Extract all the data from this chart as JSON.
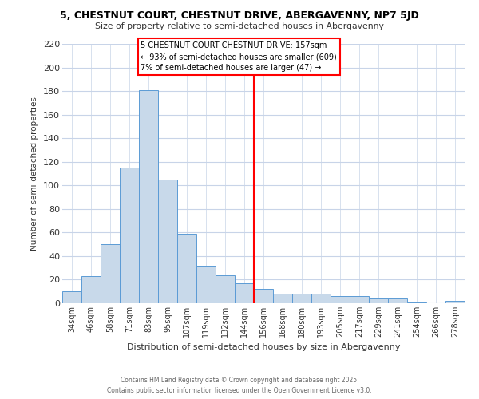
{
  "title": "5, CHESTNUT COURT, CHESTNUT DRIVE, ABERGAVENNY, NP7 5JD",
  "subtitle": "Size of property relative to semi-detached houses in Abergavenny",
  "xlabel": "Distribution of semi-detached houses by size in Abergavenny",
  "ylabel": "Number of semi-detached properties",
  "bar_labels": [
    "34sqm",
    "46sqm",
    "58sqm",
    "71sqm",
    "83sqm",
    "95sqm",
    "107sqm",
    "119sqm",
    "132sqm",
    "144sqm",
    "156sqm",
    "168sqm",
    "180sqm",
    "193sqm",
    "205sqm",
    "217sqm",
    "229sqm",
    "241sqm",
    "254sqm",
    "266sqm",
    "278sqm"
  ],
  "bar_values": [
    10,
    23,
    50,
    115,
    181,
    105,
    59,
    32,
    24,
    17,
    12,
    8,
    8,
    8,
    6,
    6,
    4,
    4,
    1,
    0,
    2
  ],
  "bar_color": "#c8d9ea",
  "bar_edge_color": "#5b9bd5",
  "vline_color": "red",
  "ylim": [
    0,
    220
  ],
  "yticks": [
    0,
    20,
    40,
    60,
    80,
    100,
    120,
    140,
    160,
    180,
    200,
    220
  ],
  "annotation_title": "5 CHESTNUT COURT CHESTNUT DRIVE: 157sqm",
  "annotation_line1": "← 93% of semi-detached houses are smaller (609)",
  "annotation_line2": "7% of semi-detached houses are larger (47) →",
  "annotation_box_color": "white",
  "annotation_box_edge": "red",
  "footer1": "Contains HM Land Registry data © Crown copyright and database right 2025.",
  "footer2": "Contains public sector information licensed under the Open Government Licence v3.0.",
  "bg_color": "white",
  "grid_color": "#c8d4e8"
}
